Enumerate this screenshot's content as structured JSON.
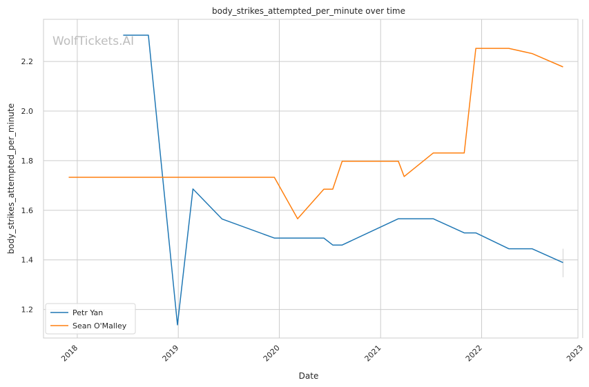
{
  "chart_data": {
    "type": "line",
    "title": "body_strikes_attempted_per_minute over time",
    "xlabel": "Date",
    "ylabel": "body_strikes_attempted_per_minute",
    "watermark": "WolfTickets.AI",
    "x_type": "date",
    "xlim": [
      "2017-09-01",
      "2022-12-15"
    ],
    "ylim": [
      1.085,
      2.37
    ],
    "x_ticks": [
      {
        "date": "2018-01-01",
        "label": "2018"
      },
      {
        "date": "2019-01-01",
        "label": "2019"
      },
      {
        "date": "2020-01-01",
        "label": "2020"
      },
      {
        "date": "2021-01-01",
        "label": "2021"
      },
      {
        "date": "2022-01-01",
        "label": "2022"
      },
      {
        "date": "2023-01-01",
        "label": "2023"
      }
    ],
    "y_ticks": [
      {
        "value": 1.2,
        "label": "1.2"
      },
      {
        "value": 1.4,
        "label": "1.4"
      },
      {
        "value": 1.6,
        "label": "1.6"
      },
      {
        "value": 1.8,
        "label": "1.8"
      },
      {
        "value": 2.0,
        "label": "2.0"
      },
      {
        "value": 2.2,
        "label": "2.2"
      }
    ],
    "grid": true,
    "legend_position": "lower-left",
    "series": [
      {
        "name": "Petr Yan",
        "color": "#1f77b4",
        "points": [
          [
            "2018-06-16",
            2.306
          ],
          [
            "2018-09-15",
            2.306
          ],
          [
            "2018-12-29",
            1.138
          ],
          [
            "2019-02-23",
            1.686
          ],
          [
            "2019-06-08",
            1.565
          ],
          [
            "2019-12-14",
            1.488
          ],
          [
            "2020-06-10",
            1.488
          ],
          [
            "2020-07-12",
            1.46
          ],
          [
            "2020-08-15",
            1.46
          ],
          [
            "2021-03-06",
            1.566
          ],
          [
            "2021-07-10",
            1.566
          ],
          [
            "2021-10-30",
            1.509
          ],
          [
            "2021-12-11",
            1.509
          ],
          [
            "2022-04-09",
            1.445
          ],
          [
            "2022-07-02",
            1.445
          ],
          [
            "2022-10-22",
            1.389
          ]
        ]
      },
      {
        "name": "Sean O'Malley",
        "color": "#ff7f0e",
        "points": [
          [
            "2017-12-01",
            1.733
          ],
          [
            "2019-12-14",
            1.733
          ],
          [
            "2020-03-07",
            1.566
          ],
          [
            "2020-06-10",
            1.685
          ],
          [
            "2020-07-12",
            1.685
          ],
          [
            "2020-08-15",
            1.798
          ],
          [
            "2021-03-06",
            1.798
          ],
          [
            "2021-03-27",
            1.736
          ],
          [
            "2021-07-10",
            1.831
          ],
          [
            "2021-10-30",
            1.831
          ],
          [
            "2021-12-11",
            2.253
          ],
          [
            "2022-04-09",
            2.253
          ],
          [
            "2022-07-02",
            2.232
          ],
          [
            "2022-10-22",
            2.178
          ]
        ]
      }
    ],
    "error_bars": [
      {
        "date": "2022-10-22",
        "low": 1.33,
        "high": 1.445,
        "color": "#d0d0d0"
      }
    ]
  }
}
